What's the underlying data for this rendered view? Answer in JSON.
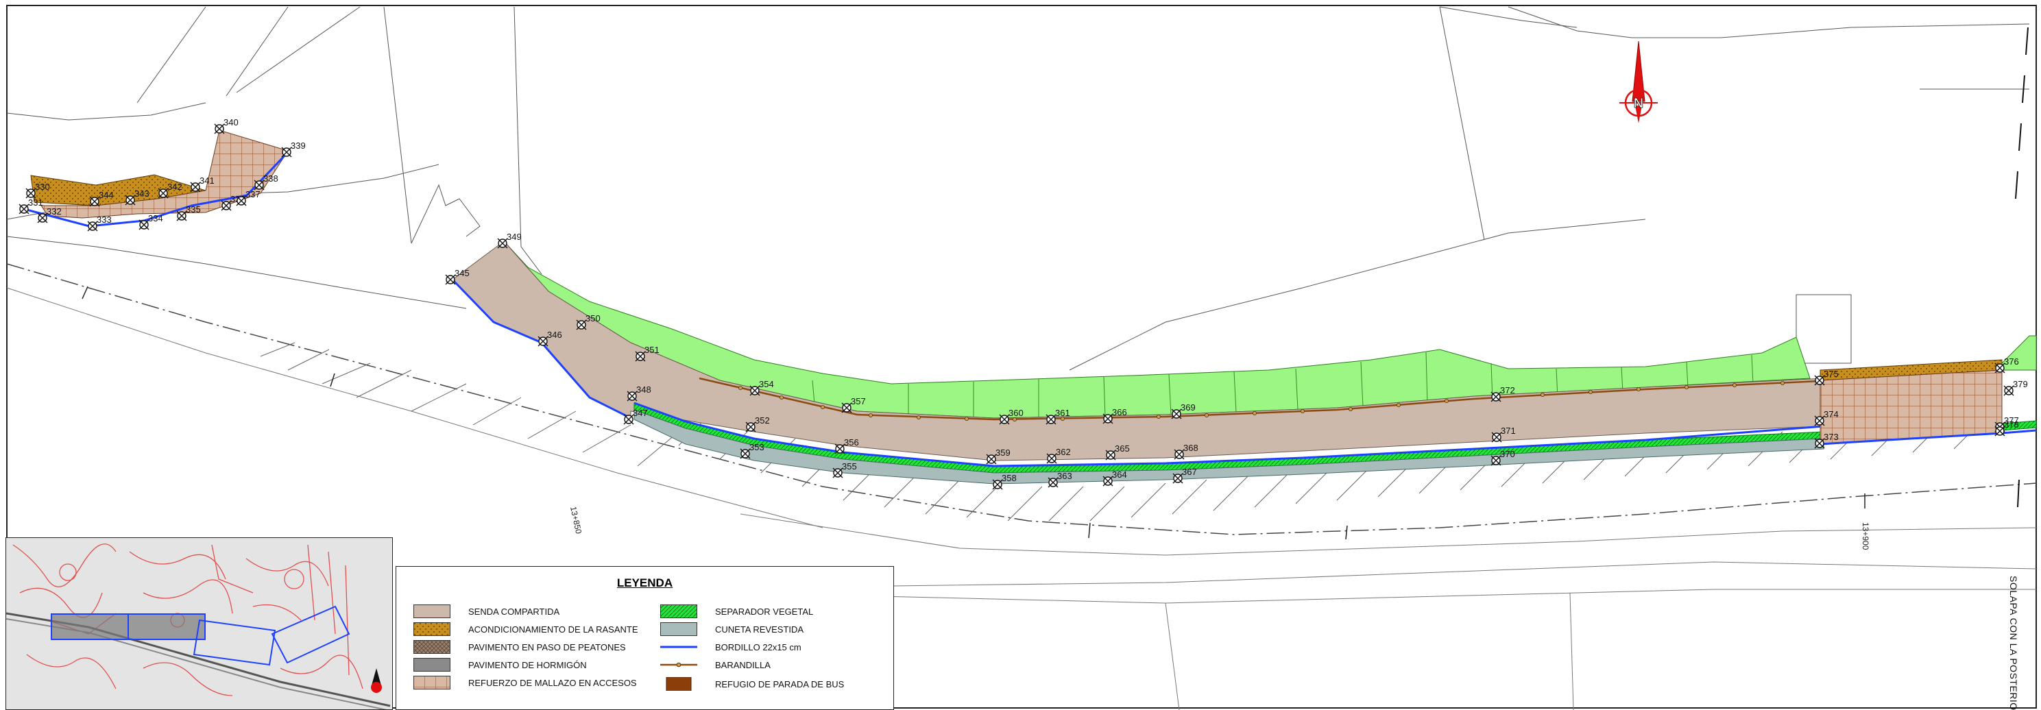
{
  "legend": {
    "title": "LEYENDA",
    "items": [
      {
        "label": "SENDA COMPARTIDA",
        "swatch": "senda",
        "color": "#cdb9ab"
      },
      {
        "label": "ACONDICIONAMIENTO DE LA RASANTE",
        "swatch": "rasante",
        "color": "#c98f1c"
      },
      {
        "label": "PAVIMENTO EN PASO DE PEATONES",
        "swatch": "peatones",
        "color": "#9a7f6c"
      },
      {
        "label": "PAVIMENTO DE HORMIGÓN",
        "swatch": "hormigon",
        "color": "#8a8a8a"
      },
      {
        "label": "REFUERZO DE MALLAZO EN ACCESOS",
        "swatch": "mallazo",
        "color": "#e7c6b3"
      },
      {
        "label": "SEPARADOR VEGETAL",
        "swatch": "separador",
        "color": "#22e63a"
      },
      {
        "label": "CUNETA REVESTIDA",
        "swatch": "cuneta",
        "color": "#a9bcbc"
      },
      {
        "label": "BORDILLO 22x15 cm",
        "swatch": "bordillo",
        "color": "#1e40ff"
      },
      {
        "label": "BARANDILLA",
        "swatch": "barandilla",
        "color": "#8b4a12"
      },
      {
        "label": "REFUGIO DE PARADA DE BUS",
        "swatch": "refugio",
        "color": "#8b3e0a"
      }
    ]
  },
  "map": {
    "north_label": "N",
    "kilometer_points": [
      "13+850",
      "13+900"
    ],
    "overlap_note": "SOLAPA CON LA POSTERIOR",
    "colors": {
      "grass": "#9cf683",
      "pavement": "#cdb9ab",
      "curb": "#1e40ff",
      "railing": "#8b4a12",
      "north_arrow": "#e01010"
    }
  },
  "points": [
    "330",
    "331",
    "332",
    "333",
    "334",
    "335",
    "336",
    "337",
    "338",
    "339",
    "340",
    "341",
    "342",
    "343",
    "344",
    "345",
    "346",
    "347",
    "348",
    "349",
    "350",
    "351",
    "352",
    "353",
    "354",
    "355",
    "356",
    "357",
    "358",
    "359",
    "360",
    "361",
    "362",
    "363",
    "364",
    "365",
    "366",
    "367",
    "368",
    "369",
    "370",
    "371",
    "372",
    "373",
    "374",
    "375",
    "376",
    "377",
    "378",
    "379"
  ]
}
